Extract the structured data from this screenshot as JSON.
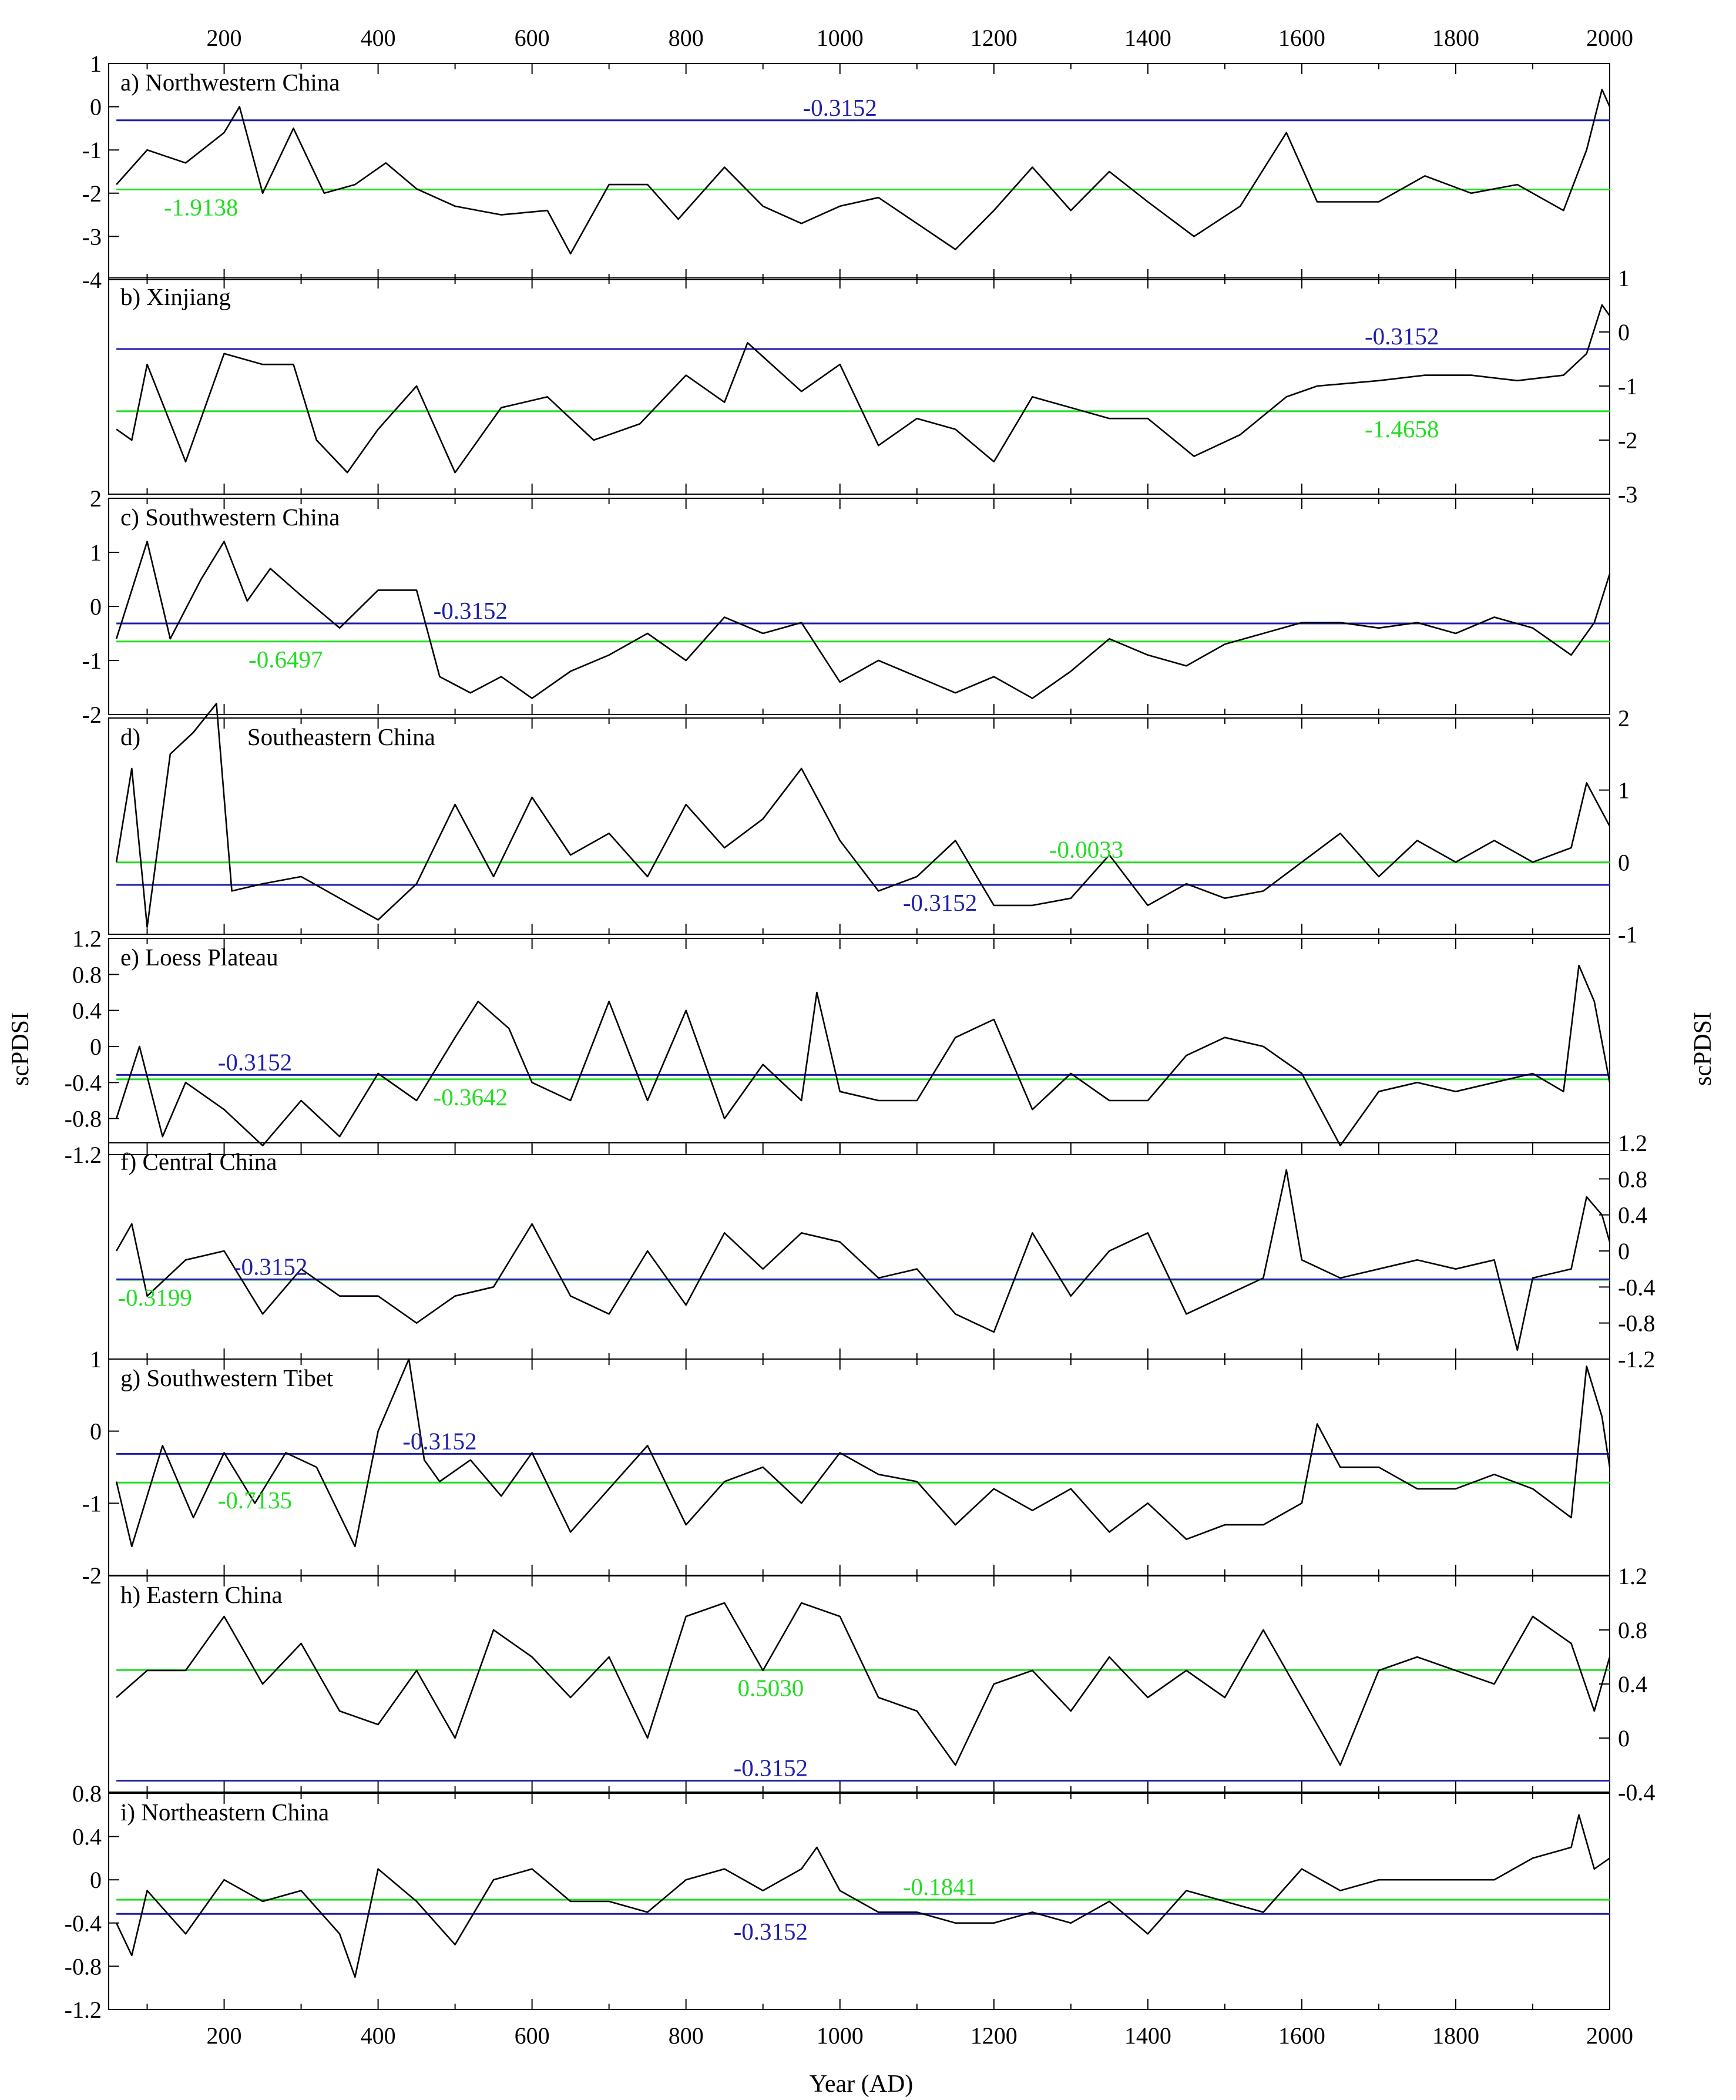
{
  "figure": {
    "x_axis_title": "Year (AD)",
    "y_axis_title_left": "scPDSI",
    "y_axis_title_right": "scPDSI",
    "x_ticks": [
      "200",
      "400",
      "600",
      "800",
      "1000",
      "1200",
      "1400",
      "1600",
      "1800",
      "2000"
    ]
  },
  "colors": {
    "series": "#000000",
    "blue_line": "#1f1fa8",
    "green_line": "#22dd22",
    "axis": "#000000"
  },
  "panels": [
    {
      "title": "a) Northwestern China",
      "side": "left",
      "ticks": [
        "1",
        "0",
        "-1",
        "-2",
        "-3",
        "-4"
      ],
      "blue_label": "-0.3152",
      "green_label": "-1.9138"
    },
    {
      "title": "b) Xinjiang",
      "side": "right",
      "ticks": [
        "1",
        "0",
        "-1",
        "-2",
        "-3"
      ],
      "blue_label": "-0.3152",
      "green_label": "-1.4658"
    },
    {
      "title": "c) Southwestern China",
      "side": "left",
      "ticks": [
        "2",
        "1",
        "0",
        "-1",
        "-2"
      ],
      "blue_label": "-0.3152",
      "green_label": "-0.6497"
    },
    {
      "title": "d)",
      "title2": "Southeastern China",
      "side": "right",
      "ticks": [
        "2",
        "1",
        "0",
        "-1"
      ],
      "blue_label": "-0.3152",
      "green_label": "-0.0033"
    },
    {
      "title": "e) Loess Plateau",
      "side": "left",
      "ticks": [
        "1.2",
        "0.8",
        "0.4",
        "0",
        "-0.4",
        "-0.8",
        "-1.2"
      ],
      "blue_label": "-0.3152",
      "green_label": "-0.3642"
    },
    {
      "title": "f) Central China",
      "side": "right",
      "ticks": [
        "1.2",
        "0.8",
        "0.4",
        "0",
        "-0.4",
        "-0.8",
        "-1.2"
      ],
      "blue_label": "-0.3152",
      "green_label": "-0.3199"
    },
    {
      "title": "g) Southwestern Tibet",
      "side": "left",
      "ticks": [
        "1",
        "0",
        "-1",
        "-2"
      ],
      "blue_label": "-0.3152",
      "green_label": "-0.7135"
    },
    {
      "title": "h) Eastern China",
      "side": "right",
      "ticks": [
        "1.2",
        "0.8",
        "0.4",
        "0",
        "-0.4"
      ],
      "blue_label": "-0.3152",
      "green_label": "0.5030"
    },
    {
      "title": "i) Northeastern China",
      "side": "left",
      "ticks": [
        "0.8",
        "0.4",
        "0",
        "-0.4",
        "-0.8",
        "-1.2"
      ],
      "blue_label": "-0.3152",
      "green_label": "-0.1841"
    }
  ],
  "chart_data": [
    {
      "type": "line",
      "title": "a) Northwestern China",
      "xlabel": "Year (AD)",
      "ylabel": "scPDSI",
      "xlim": [
        50,
        2000
      ],
      "ylim": [
        -4,
        1
      ],
      "reference_lines": [
        {
          "value": -0.3152,
          "color": "blue"
        },
        {
          "value": -1.9138,
          "color": "green"
        }
      ],
      "x": [
        60,
        100,
        150,
        200,
        220,
        250,
        290,
        330,
        370,
        410,
        450,
        500,
        560,
        620,
        650,
        700,
        750,
        790,
        850,
        900,
        950,
        1000,
        1050,
        1100,
        1150,
        1200,
        1250,
        1300,
        1350,
        1400,
        1460,
        1520,
        1580,
        1620,
        1700,
        1760,
        1820,
        1880,
        1940,
        1970,
        1990,
        2000
      ],
      "y": [
        -1.8,
        -1.0,
        -1.3,
        -0.6,
        0.0,
        -2.0,
        -0.5,
        -2.0,
        -1.8,
        -1.3,
        -1.9,
        -2.3,
        -2.5,
        -2.4,
        -3.4,
        -1.8,
        -1.8,
        -2.6,
        -1.4,
        -2.3,
        -2.7,
        -2.3,
        -2.1,
        -2.7,
        -3.3,
        -2.4,
        -1.4,
        -2.4,
        -1.5,
        -2.2,
        -3.0,
        -2.3,
        -0.6,
        -2.2,
        -2.2,
        -1.6,
        -2.0,
        -1.8,
        -2.4,
        -1.0,
        0.4,
        0.0
      ]
    },
    {
      "type": "line",
      "title": "b) Xinjiang",
      "xlabel": "Year (AD)",
      "ylabel": "scPDSI",
      "xlim": [
        50,
        2000
      ],
      "ylim": [
        -3,
        1
      ],
      "reference_lines": [
        {
          "value": -0.3152,
          "color": "blue"
        },
        {
          "value": -1.4658,
          "color": "green"
        }
      ],
      "x": [
        60,
        80,
        100,
        150,
        200,
        250,
        290,
        320,
        360,
        400,
        450,
        500,
        560,
        620,
        680,
        740,
        800,
        850,
        880,
        950,
        1000,
        1050,
        1100,
        1150,
        1200,
        1250,
        1300,
        1350,
        1400,
        1460,
        1520,
        1580,
        1620,
        1700,
        1760,
        1820,
        1880,
        1940,
        1970,
        1990,
        2000
      ],
      "y": [
        -1.8,
        -2.0,
        -0.6,
        -2.4,
        -0.4,
        -0.6,
        -0.6,
        -2.0,
        -2.6,
        -1.8,
        -1.0,
        -2.6,
        -1.4,
        -1.2,
        -2.0,
        -1.7,
        -0.8,
        -1.3,
        -0.2,
        -1.1,
        -0.6,
        -2.1,
        -1.6,
        -1.8,
        -2.4,
        -1.2,
        -1.4,
        -1.6,
        -1.6,
        -2.3,
        -1.9,
        -1.2,
        -1.0,
        -0.9,
        -0.8,
        -0.8,
        -0.9,
        -0.8,
        -0.4,
        0.5,
        0.3
      ]
    },
    {
      "type": "line",
      "title": "c) Southwestern China",
      "xlabel": "Year (AD)",
      "ylabel": "scPDSI",
      "xlim": [
        50,
        2000
      ],
      "ylim": [
        -2,
        2
      ],
      "reference_lines": [
        {
          "value": -0.3152,
          "color": "blue"
        },
        {
          "value": -0.6497,
          "color": "green"
        }
      ],
      "x": [
        60,
        100,
        130,
        170,
        200,
        230,
        260,
        300,
        350,
        400,
        450,
        480,
        520,
        560,
        600,
        650,
        700,
        750,
        800,
        850,
        900,
        950,
        1000,
        1050,
        1100,
        1150,
        1200,
        1250,
        1300,
        1350,
        1400,
        1450,
        1500,
        1550,
        1600,
        1650,
        1700,
        1750,
        1800,
        1850,
        1900,
        1950,
        1980,
        2000
      ],
      "y": [
        -0.6,
        1.2,
        -0.6,
        0.5,
        1.2,
        0.1,
        0.7,
        0.2,
        -0.4,
        0.3,
        0.3,
        -1.3,
        -1.6,
        -1.3,
        -1.7,
        -1.2,
        -0.9,
        -0.5,
        -1.0,
        -0.2,
        -0.5,
        -0.3,
        -1.4,
        -1.0,
        -1.3,
        -1.6,
        -1.3,
        -1.7,
        -1.2,
        -0.6,
        -0.9,
        -1.1,
        -0.7,
        -0.5,
        -0.3,
        -0.3,
        -0.4,
        -0.3,
        -0.5,
        -0.2,
        -0.4,
        -0.9,
        -0.3,
        0.6
      ]
    },
    {
      "type": "line",
      "title": "d) Southeastern China",
      "xlabel": "Year (AD)",
      "ylabel": "scPDSI",
      "xlim": [
        50,
        2000
      ],
      "ylim": [
        -1,
        2
      ],
      "reference_lines": [
        {
          "value": -0.3152,
          "color": "blue"
        },
        {
          "value": -0.0033,
          "color": "green"
        }
      ],
      "x": [
        60,
        80,
        100,
        130,
        160,
        190,
        210,
        250,
        300,
        350,
        400,
        450,
        500,
        550,
        600,
        650,
        700,
        750,
        800,
        850,
        900,
        950,
        1000,
        1050,
        1100,
        1150,
        1200,
        1250,
        1300,
        1350,
        1400,
        1450,
        1500,
        1550,
        1600,
        1650,
        1700,
        1750,
        1800,
        1850,
        1900,
        1950,
        1970,
        2000
      ],
      "y": [
        0.0,
        1.3,
        -0.9,
        1.5,
        1.8,
        2.2,
        -0.4,
        -0.3,
        -0.2,
        -0.5,
        -0.8,
        -0.3,
        0.8,
        -0.2,
        0.9,
        0.1,
        0.4,
        -0.2,
        0.8,
        0.2,
        0.6,
        1.3,
        0.3,
        -0.4,
        -0.2,
        0.3,
        -0.6,
        -0.6,
        -0.5,
        0.1,
        -0.6,
        -0.3,
        -0.5,
        -0.4,
        0.0,
        0.4,
        -0.2,
        0.3,
        0.0,
        0.3,
        0.0,
        0.2,
        1.1,
        0.5
      ]
    },
    {
      "type": "line",
      "title": "e) Loess Plateau",
      "xlabel": "Year (AD)",
      "ylabel": "scPDSI",
      "xlim": [
        50,
        2000
      ],
      "ylim": [
        -1.2,
        1.2
      ],
      "reference_lines": [
        {
          "value": -0.3152,
          "color": "blue"
        },
        {
          "value": -0.3642,
          "color": "green"
        }
      ],
      "x": [
        60,
        90,
        120,
        150,
        200,
        250,
        300,
        350,
        400,
        450,
        500,
        530,
        570,
        600,
        650,
        700,
        750,
        800,
        850,
        900,
        950,
        970,
        1000,
        1050,
        1100,
        1150,
        1200,
        1250,
        1300,
        1350,
        1400,
        1450,
        1500,
        1550,
        1600,
        1650,
        1700,
        1750,
        1800,
        1850,
        1900,
        1940,
        1960,
        1980,
        2000
      ],
      "y": [
        -0.8,
        0.0,
        -1.0,
        -0.4,
        -0.7,
        -1.1,
        -0.6,
        -1.0,
        -0.3,
        -0.6,
        0.1,
        0.5,
        0.2,
        -0.4,
        -0.6,
        0.5,
        -0.6,
        0.4,
        -0.8,
        -0.2,
        -0.6,
        0.6,
        -0.5,
        -0.6,
        -0.6,
        0.1,
        0.3,
        -0.7,
        -0.3,
        -0.6,
        -0.6,
        -0.1,
        0.1,
        0.0,
        -0.3,
        -1.1,
        -0.5,
        -0.4,
        -0.5,
        -0.4,
        -0.3,
        -0.5,
        0.9,
        0.5,
        -0.4
      ]
    },
    {
      "type": "line",
      "title": "f) Central China",
      "xlabel": "Year (AD)",
      "ylabel": "scPDSI",
      "xlim": [
        50,
        2000
      ],
      "ylim": [
        -1.2,
        1.2
      ],
      "reference_lines": [
        {
          "value": -0.3152,
          "color": "blue"
        },
        {
          "value": -0.3199,
          "color": "green"
        }
      ],
      "x": [
        60,
        80,
        100,
        150,
        200,
        250,
        300,
        350,
        400,
        450,
        500,
        550,
        600,
        650,
        700,
        750,
        800,
        850,
        900,
        950,
        1000,
        1050,
        1100,
        1150,
        1200,
        1250,
        1300,
        1350,
        1400,
        1450,
        1500,
        1550,
        1580,
        1600,
        1650,
        1700,
        1750,
        1800,
        1850,
        1880,
        1900,
        1950,
        1970,
        1990,
        2000
      ],
      "y": [
        0.0,
        0.3,
        -0.5,
        -0.1,
        0.0,
        -0.7,
        -0.2,
        -0.5,
        -0.5,
        -0.8,
        -0.5,
        -0.4,
        0.3,
        -0.5,
        -0.7,
        0.0,
        -0.6,
        0.2,
        -0.2,
        0.2,
        0.1,
        -0.3,
        -0.2,
        -0.7,
        -0.9,
        0.2,
        -0.5,
        0.0,
        0.2,
        -0.7,
        -0.5,
        -0.3,
        0.9,
        -0.1,
        -0.3,
        -0.2,
        -0.1,
        -0.2,
        -0.1,
        -1.1,
        -0.3,
        -0.2,
        0.6,
        0.4,
        0.1
      ]
    },
    {
      "type": "line",
      "title": "g) Southwestern Tibet",
      "xlabel": "Year (AD)",
      "ylabel": "scPDSI",
      "xlim": [
        50,
        2000
      ],
      "ylim": [
        -2,
        1
      ],
      "reference_lines": [
        {
          "value": -0.3152,
          "color": "blue"
        },
        {
          "value": -0.7135,
          "color": "green"
        }
      ],
      "x": [
        60,
        80,
        120,
        160,
        200,
        240,
        280,
        320,
        370,
        400,
        440,
        460,
        480,
        520,
        560,
        600,
        650,
        700,
        750,
        800,
        850,
        900,
        950,
        1000,
        1050,
        1100,
        1150,
        1200,
        1250,
        1300,
        1350,
        1400,
        1450,
        1500,
        1550,
        1600,
        1620,
        1650,
        1700,
        1750,
        1800,
        1850,
        1900,
        1950,
        1970,
        1990,
        2000
      ],
      "y": [
        -0.7,
        -1.6,
        -0.2,
        -1.2,
        -0.3,
        -1.0,
        -0.3,
        -0.5,
        -1.6,
        0.0,
        1.0,
        -0.4,
        -0.7,
        -0.4,
        -0.9,
        -0.3,
        -1.4,
        -0.8,
        -0.2,
        -1.3,
        -0.7,
        -0.5,
        -1.0,
        -0.3,
        -0.6,
        -0.7,
        -1.3,
        -0.8,
        -1.1,
        -0.8,
        -1.4,
        -1.0,
        -1.5,
        -1.3,
        -1.3,
        -1.0,
        0.1,
        -0.5,
        -0.5,
        -0.8,
        -0.8,
        -0.6,
        -0.8,
        -1.2,
        0.9,
        0.2,
        -0.5
      ]
    },
    {
      "type": "line",
      "title": "h) Eastern China",
      "xlabel": "Year (AD)",
      "ylabel": "scPDSI",
      "xlim": [
        50,
        2000
      ],
      "ylim": [
        -0.4,
        1.2
      ],
      "reference_lines": [
        {
          "value": -0.3152,
          "color": "blue"
        },
        {
          "value": 0.503,
          "color": "green"
        }
      ],
      "x": [
        60,
        100,
        150,
        200,
        250,
        300,
        350,
        400,
        450,
        500,
        550,
        600,
        650,
        700,
        750,
        800,
        850,
        900,
        950,
        1000,
        1050,
        1100,
        1150,
        1200,
        1250,
        1300,
        1350,
        1400,
        1450,
        1500,
        1550,
        1600,
        1650,
        1700,
        1750,
        1800,
        1850,
        1900,
        1950,
        1980,
        2000
      ],
      "y": [
        0.3,
        0.5,
        0.5,
        0.9,
        0.4,
        0.7,
        0.2,
        0.1,
        0.5,
        0.0,
        0.8,
        0.6,
        0.3,
        0.6,
        0.0,
        0.9,
        1.0,
        0.5,
        1.0,
        0.9,
        0.3,
        0.2,
        -0.2,
        0.4,
        0.5,
        0.2,
        0.6,
        0.3,
        0.5,
        0.3,
        0.8,
        0.3,
        -0.2,
        0.5,
        0.6,
        0.5,
        0.4,
        0.9,
        0.7,
        0.2,
        0.6
      ]
    },
    {
      "type": "line",
      "title": "i) Northeastern China",
      "xlabel": "Year (AD)",
      "ylabel": "scPDSI",
      "xlim": [
        50,
        2000
      ],
      "ylim": [
        -1.2,
        0.8
      ],
      "reference_lines": [
        {
          "value": -0.3152,
          "color": "blue"
        },
        {
          "value": -0.1841,
          "color": "green"
        }
      ],
      "x": [
        60,
        80,
        100,
        150,
        200,
        250,
        300,
        350,
        370,
        400,
        450,
        500,
        550,
        600,
        650,
        700,
        750,
        800,
        850,
        900,
        950,
        970,
        1000,
        1050,
        1100,
        1150,
        1200,
        1250,
        1300,
        1350,
        1400,
        1450,
        1500,
        1550,
        1600,
        1650,
        1700,
        1750,
        1800,
        1850,
        1900,
        1950,
        1960,
        1980,
        2000
      ],
      "y": [
        -0.4,
        -0.7,
        -0.1,
        -0.5,
        0.0,
        -0.2,
        -0.1,
        -0.5,
        -0.9,
        0.1,
        -0.2,
        -0.6,
        0.0,
        0.1,
        -0.2,
        -0.2,
        -0.3,
        0.0,
        0.1,
        -0.1,
        0.1,
        0.3,
        -0.1,
        -0.3,
        -0.3,
        -0.4,
        -0.4,
        -0.3,
        -0.4,
        -0.2,
        -0.5,
        -0.1,
        -0.2,
        -0.3,
        0.1,
        -0.1,
        0.0,
        0.0,
        0.0,
        0.0,
        0.2,
        0.3,
        0.6,
        0.1,
        0.2
      ]
    }
  ]
}
